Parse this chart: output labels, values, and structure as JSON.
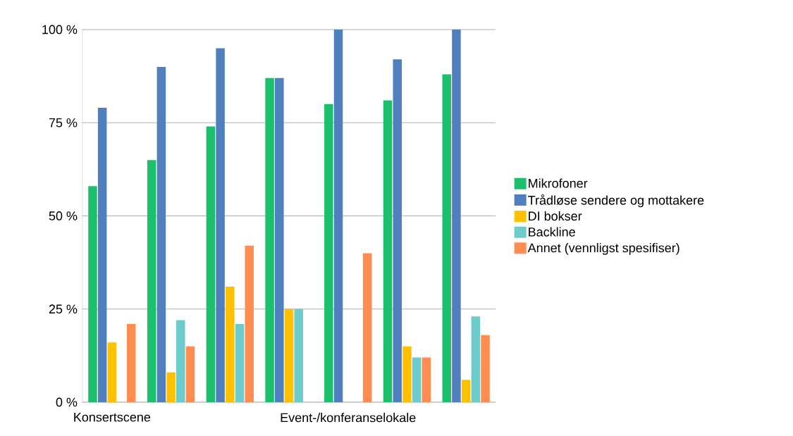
{
  "chart_data": {
    "type": "bar",
    "categories": [
      "Konsertscene",
      null,
      null,
      null,
      "Event-/konferanselokale",
      null,
      null
    ],
    "series": [
      {
        "name": "Mikrofoner",
        "color": "#1cc06c",
        "values": [
          58,
          65,
          74,
          87,
          80,
          81,
          88
        ]
      },
      {
        "name": "Trådløse sendere og mottakere",
        "color": "#4f7fbd",
        "values": [
          79,
          90,
          95,
          87,
          100,
          92,
          100
        ]
      },
      {
        "name": "DI bokser",
        "color": "#ffc000",
        "values": [
          16,
          8,
          31,
          25,
          0,
          15,
          6
        ]
      },
      {
        "name": "Backline",
        "color": "#6ccbcb",
        "values": [
          0,
          22,
          21,
          25,
          0,
          12,
          23
        ]
      },
      {
        "name": "Annet (vennligst spesifiser)",
        "color": "#ff8c50",
        "values": [
          21,
          15,
          42,
          0,
          40,
          12,
          18
        ]
      }
    ],
    "ylim": [
      0,
      100
    ],
    "yticks": [
      {
        "value": 0,
        "label": "0 %"
      },
      {
        "value": 25,
        "label": "25 %"
      },
      {
        "value": 50,
        "label": "50 %"
      },
      {
        "value": 75,
        "label": "75 %"
      },
      {
        "value": 100,
        "label": "100 %"
      }
    ],
    "grid": "y",
    "legend": "right"
  }
}
